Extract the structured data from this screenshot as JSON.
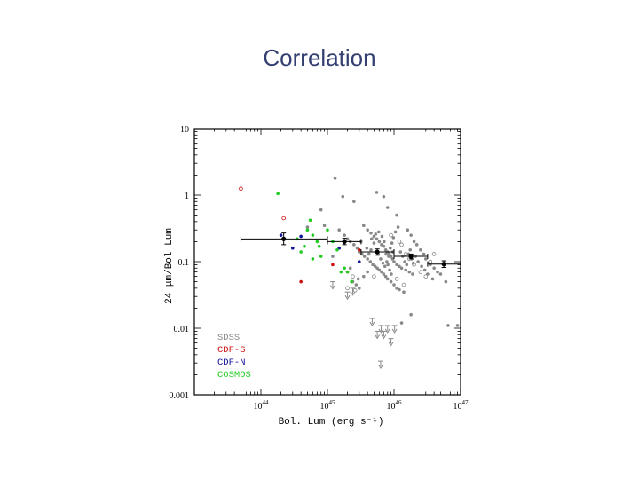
{
  "slide": {
    "title": "Correlation"
  },
  "chart_data": {
    "type": "scatter",
    "title": "",
    "xlabel": "Bol. Lum (erg s⁻¹)",
    "ylabel": "24 μm/Bol Lum",
    "x_scale": "log",
    "y_scale": "log",
    "xlim": [
      1e+43,
      1e+47
    ],
    "ylim": [
      0.001,
      10
    ],
    "x_ticks": [
      {
        "value": 1e+44,
        "base": "10",
        "exp": "44"
      },
      {
        "value": 1e+45,
        "base": "10",
        "exp": "45"
      },
      {
        "value": 1e+46,
        "base": "10",
        "exp": "46"
      },
      {
        "value": 1e+47,
        "base": "10",
        "exp": "47"
      }
    ],
    "y_ticks": [
      {
        "value": 10,
        "label": "10"
      },
      {
        "value": 1,
        "label": "1"
      },
      {
        "value": 0.1,
        "label": "0.1"
      },
      {
        "value": 0.01,
        "label": "0.01"
      },
      {
        "value": 0.001,
        "label": "0.001"
      }
    ],
    "grid": false,
    "legend_position": "bottom-left",
    "series": [
      {
        "name": "SDSS",
        "color": "#888888",
        "points": [
          [
            1.3e+45,
            1.8
          ],
          [
            1.7e+45,
            0.95
          ],
          [
            2.5e+45,
            0.8
          ],
          [
            5.5e+45,
            1.1
          ],
          [
            7e+45,
            0.95
          ],
          [
            8e+45,
            0.65
          ],
          [
            1.1e+46,
            0.5
          ],
          [
            1.5e+45,
            0.3
          ],
          [
            1.8e+45,
            0.25
          ],
          [
            2e+45,
            0.22
          ],
          [
            2.2e+45,
            0.2
          ],
          [
            2.5e+45,
            0.18
          ],
          [
            2.8e+45,
            0.16
          ],
          [
            3e+45,
            0.14
          ],
          [
            3.3e+45,
            0.13
          ],
          [
            3.6e+45,
            0.12
          ],
          [
            4e+45,
            0.11
          ],
          [
            4.4e+45,
            0.1
          ],
          [
            4.8e+45,
            0.09
          ],
          [
            5.2e+45,
            0.085
          ],
          [
            5.6e+45,
            0.08
          ],
          [
            6e+45,
            0.075
          ],
          [
            6.5e+45,
            0.07
          ],
          [
            7e+45,
            0.065
          ],
          [
            7.5e+45,
            0.06
          ],
          [
            8e+45,
            0.055
          ],
          [
            9e+45,
            0.05
          ],
          [
            1e+46,
            0.045
          ],
          [
            1.1e+46,
            0.04
          ],
          [
            1.2e+46,
            0.038
          ],
          [
            1.4e+46,
            0.035
          ],
          [
            1.6e+46,
            0.3
          ],
          [
            1.8e+46,
            0.25
          ],
          [
            2e+46,
            0.2
          ],
          [
            2.2e+46,
            0.18
          ],
          [
            2.5e+46,
            0.15
          ],
          [
            2.8e+46,
            0.13
          ],
          [
            3e+46,
            0.11
          ],
          [
            3.5e+46,
            0.09
          ],
          [
            4e+46,
            0.08
          ],
          [
            4.5e+46,
            0.07
          ],
          [
            5e+46,
            0.065
          ],
          [
            3.5e+45,
            0.35
          ],
          [
            4e+45,
            0.3
          ],
          [
            4.5e+45,
            0.27
          ],
          [
            5e+45,
            0.24
          ],
          [
            5.5e+45,
            0.22
          ],
          [
            6e+45,
            0.2
          ],
          [
            6.5e+45,
            0.18
          ],
          [
            7e+45,
            0.17
          ],
          [
            7.5e+45,
            0.15
          ],
          [
            8e+45,
            0.14
          ],
          [
            8.5e+45,
            0.13
          ],
          [
            9e+45,
            0.12
          ],
          [
            9.5e+45,
            0.11
          ],
          [
            1e+46,
            0.1
          ],
          [
            1.1e+46,
            0.09
          ],
          [
            1.2e+46,
            0.085
          ],
          [
            1.3e+46,
            0.08
          ],
          [
            1.5e+46,
            0.075
          ],
          [
            1.7e+46,
            0.07
          ],
          [
            1.9e+46,
            0.065
          ],
          [
            2.4e+45,
            0.05
          ],
          [
            2.7e+45,
            0.045
          ],
          [
            3e+45,
            0.04
          ],
          [
            3.5e+45,
            0.06
          ],
          [
            4e+45,
            0.07
          ],
          [
            4.5e+45,
            0.15
          ],
          [
            5e+45,
            0.19
          ],
          [
            5.8e+45,
            0.13
          ],
          [
            6.3e+45,
            0.11
          ],
          [
            6.8e+45,
            0.095
          ],
          [
            7.3e+45,
            0.085
          ],
          [
            7.8e+45,
            0.1
          ],
          [
            8.3e+45,
            0.12
          ],
          [
            8.8e+45,
            0.16
          ],
          [
            9.3e+45,
            0.19
          ],
          [
            9.8e+45,
            0.23
          ],
          [
            1.05e+46,
            0.28
          ],
          [
            1.15e+46,
            0.33
          ],
          [
            1.25e+46,
            0.14
          ],
          [
            1.35e+46,
            0.12
          ],
          [
            1.45e+46,
            0.1
          ],
          [
            1.55e+46,
            0.09
          ],
          [
            1.65e+46,
            0.13
          ],
          [
            1.75e+46,
            0.15
          ],
          [
            1.85e+46,
            0.11
          ],
          [
            1.95e+46,
            0.095
          ],
          [
            2.1e+46,
            0.12
          ],
          [
            2.3e+46,
            0.1
          ],
          [
            2.6e+46,
            0.085
          ],
          [
            2.9e+46,
            0.075
          ],
          [
            3.2e+46,
            0.065
          ],
          [
            3.8e+46,
            0.055
          ],
          [
            6e+46,
            0.05
          ],
          [
            6.5e+46,
            0.011
          ],
          [
            9e+46,
            0.011
          ],
          [
            1.3e+46,
            0.012
          ],
          [
            1.8e+46,
            0.016
          ],
          [
            5e+44,
            0.33
          ],
          [
            8e+44,
            0.6
          ],
          [
            9e+44,
            0.35
          ],
          [
            1.2e+45,
            0.12
          ],
          [
            2.2e+45,
            0.08
          ],
          [
            2.9e+45,
            0.055
          ],
          [
            3.2e+45,
            0.2
          ],
          [
            3.9e+45,
            0.16
          ],
          [
            4.2e+45,
            0.13
          ],
          [
            4.6e+45,
            0.22
          ],
          [
            5.3e+45,
            0.26
          ],
          [
            5.9e+45,
            0.28
          ],
          [
            6.6e+45,
            0.24
          ],
          [
            7.1e+45,
            0.2
          ],
          [
            7.6e+45,
            0.13
          ],
          [
            8.1e+45,
            0.09
          ],
          [
            8.6e+45,
            0.075
          ],
          [
            9.1e+45,
            0.065
          ],
          [
            9.6e+45,
            0.14
          ]
        ]
      },
      {
        "name": "CDF-S",
        "color": "#cc1111",
        "points": [
          [
            4e+44,
            0.05
          ],
          [
            1.2e+45,
            0.09
          ],
          [
            2e+45,
            0.07
          ],
          [
            3e+45,
            0.15
          ]
        ]
      },
      {
        "name": "CDF-N",
        "color": "#111199",
        "points": [
          [
            2e+44,
            0.25
          ],
          [
            3e+44,
            0.16
          ],
          [
            4e+44,
            0.24
          ],
          [
            1.5e+45,
            0.16
          ],
          [
            3e+45,
            0.1
          ]
        ]
      },
      {
        "name": "COSMOS",
        "color": "#22cc22",
        "points": [
          [
            1.8e+44,
            1.05
          ],
          [
            5.5e+44,
            0.42
          ],
          [
            5e+44,
            0.3
          ],
          [
            6e+44,
            0.25
          ],
          [
            7e+44,
            0.2
          ],
          [
            4.5e+44,
            0.17
          ],
          [
            4e+44,
            0.14
          ],
          [
            6e+44,
            0.11
          ],
          [
            8e+44,
            0.12
          ],
          [
            1e+45,
            0.3
          ],
          [
            1.2e+45,
            0.2
          ],
          [
            1.6e+45,
            0.07
          ],
          [
            1.8e+45,
            0.08
          ],
          [
            2e+45,
            0.07
          ],
          [
            2.3e+45,
            0.05
          ],
          [
            3.5e+44,
            0.22
          ],
          [
            7.5e+44,
            0.17
          ],
          [
            1.4e+45,
            0.15
          ]
        ]
      }
    ],
    "open_points": [
      {
        "color": "#cc1111",
        "points": [
          [
            5e+43,
            1.25
          ],
          [
            2.2e+44,
            0.45
          ]
        ]
      },
      {
        "color": "#888888",
        "points": [
          [
            1.2e+46,
            0.2
          ],
          [
            1.3e+46,
            0.18
          ],
          [
            1.5e+46,
            0.13
          ],
          [
            1.7e+46,
            0.11
          ],
          [
            2e+46,
            0.09
          ],
          [
            2.5e+46,
            0.07
          ],
          [
            3e+46,
            0.06
          ],
          [
            3.5e+46,
            0.1
          ],
          [
            4e+46,
            0.13
          ],
          [
            9e+45,
            0.25
          ],
          [
            5e+45,
            0.06
          ],
          [
            2.4e+45,
            0.06
          ],
          [
            2e+45,
            0.04
          ],
          [
            2.6e+45,
            0.037
          ],
          [
            1.1e+46,
            0.055
          ],
          [
            1.4e+46,
            0.045
          ]
        ]
      }
    ],
    "upper_limits": [
      [
        1.2e+45,
        0.05
      ],
      [
        2e+45,
        0.035
      ],
      [
        2.4e+45,
        0.04
      ],
      [
        4.7e+45,
        0.014
      ],
      [
        5.6e+45,
        0.009
      ],
      [
        6.4e+45,
        0.011
      ],
      [
        7e+45,
        0.009
      ],
      [
        8e+45,
        0.011
      ],
      [
        9e+45,
        0.007
      ],
      [
        1.02e+46,
        0.011
      ],
      [
        6.3e+45,
        0.0032
      ]
    ],
    "binned": [
      {
        "x": 2.2e+44,
        "y": 0.22,
        "xerr": [
          5e+43,
          1e+45
        ],
        "yerr": [
          0.18,
          0.27
        ]
      },
      {
        "x": 1.8e+45,
        "y": 0.2,
        "xerr": [
          1e+45,
          3.2e+45
        ],
        "yerr": [
          0.18,
          0.225
        ]
      },
      {
        "x": 5.6e+45,
        "y": 0.14,
        "xerr": [
          3.2e+45,
          1e+46
        ],
        "yerr": [
          0.125,
          0.155
        ]
      },
      {
        "x": 1.8e+46,
        "y": 0.12,
        "xerr": [
          1e+46,
          3.2e+46
        ],
        "yerr": [
          0.11,
          0.13
        ]
      },
      {
        "x": 5.6e+46,
        "y": 0.092,
        "xerr": [
          3.2e+46,
          1e+47
        ],
        "yerr": [
          0.082,
          0.103
        ]
      }
    ]
  }
}
